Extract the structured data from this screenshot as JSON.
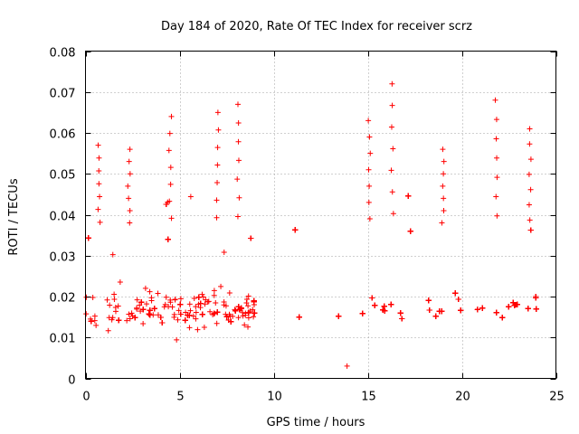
{
  "chart_data": {
    "type": "scatter",
    "title": "Day 184 of 2020, Rate Of TEC Index for receiver scrz",
    "xlabel": "GPS time / hours",
    "ylabel": "ROTI / TECUs",
    "xlim": [
      0,
      25
    ],
    "ylim": [
      0,
      0.08
    ],
    "x_ticks": [
      0,
      5,
      10,
      15,
      20,
      25
    ],
    "x_tick_labels": [
      "0",
      "5",
      "10",
      "15",
      "20",
      "25"
    ],
    "y_ticks": [
      0,
      0.01,
      0.02,
      0.03,
      0.04,
      0.05,
      0.06,
      0.07,
      0.08
    ],
    "y_tick_labels": [
      "0",
      "0.01",
      "0.02",
      "0.03",
      "0.04",
      "0.05",
      "0.06",
      "0.07",
      "0.08"
    ],
    "grid": true,
    "marker": "+",
    "color": "#ff0000",
    "series": [
      {
        "name": "ROTI",
        "segments": [
          {
            "x_range": [
              0,
              9.0
            ],
            "typical_range": [
              0.008,
              0.028
            ],
            "median": 0.016
          },
          {
            "x_range": [
              10.9,
              24.0
            ],
            "typical_range": [
              0.008,
              0.03
            ],
            "median": 0.017
          }
        ],
        "peaks": [
          {
            "x": 0.7,
            "y": 0.057
          },
          {
            "x": 2.3,
            "y": 0.056
          },
          {
            "x": 4.5,
            "y": 0.064
          },
          {
            "x": 7.0,
            "y": 0.065
          },
          {
            "x": 8.1,
            "y": 0.067
          },
          {
            "x": 15.1,
            "y": 0.063
          },
          {
            "x": 16.3,
            "y": 0.072
          },
          {
            "x": 19.0,
            "y": 0.056
          },
          {
            "x": 21.8,
            "y": 0.068
          },
          {
            "x": 23.6,
            "y": 0.061
          }
        ],
        "minimum": {
          "x": 13.9,
          "y": 0.003
        }
      }
    ]
  }
}
